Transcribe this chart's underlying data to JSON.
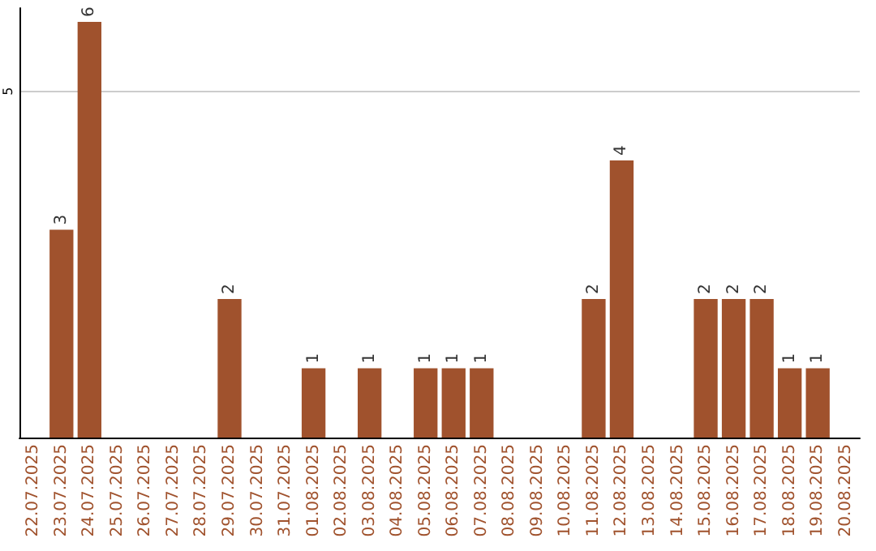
{
  "chart_data": {
    "type": "bar",
    "categories": [
      "22.07.2025",
      "23.07.2025",
      "24.07.2025",
      "25.07.2025",
      "26.07.2025",
      "27.07.2025",
      "28.07.2025",
      "29.07.2025",
      "30.07.2025",
      "31.07.2025",
      "01.08.2025",
      "02.08.2025",
      "03.08.2025",
      "04.08.2025",
      "05.08.2025",
      "06.08.2025",
      "07.08.2025",
      "08.08.2025",
      "09.08.2025",
      "10.08.2025",
      "11.08.2025",
      "12.08.2025",
      "13.08.2025",
      "14.08.2025",
      "15.08.2025",
      "16.08.2025",
      "17.08.2025",
      "18.08.2025",
      "19.08.2025",
      "20.08.2025"
    ],
    "values": [
      0,
      3,
      6,
      0,
      0,
      0,
      0,
      2,
      0,
      0,
      1,
      0,
      1,
      0,
      1,
      1,
      1,
      0,
      0,
      0,
      2,
      4,
      0,
      0,
      2,
      2,
      2,
      1,
      1,
      0
    ],
    "value_labels": [
      null,
      "3",
      "6",
      null,
      null,
      null,
      null,
      "2",
      null,
      null,
      "1",
      null,
      "1",
      null,
      "1",
      "1",
      "1",
      null,
      null,
      null,
      "2",
      "4",
      null,
      null,
      "2",
      "2",
      "2",
      "1",
      "1",
      null
    ],
    "color": "#a0522d",
    "ylim": [
      0,
      6.2
    ],
    "yticks": [
      5
    ],
    "grid": "y"
  }
}
